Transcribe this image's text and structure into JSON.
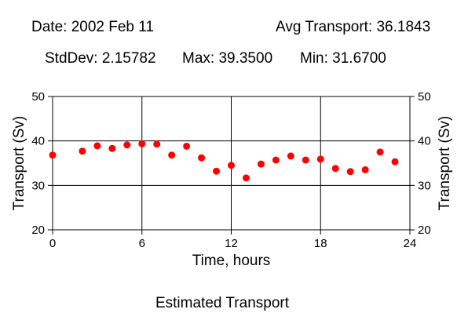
{
  "header": {
    "date": "Date: 2002 Feb 11",
    "avg": "Avg Transport: 36.1843",
    "stddev": "StdDev: 2.15782",
    "max": "Max: 39.3500",
    "min": "Min: 31.6700"
  },
  "chart_data": {
    "type": "scatter",
    "title": "Estimated Transport",
    "xlabel": "Time, hours",
    "ylabel": "Transport (Sv)",
    "xlim": [
      0,
      24
    ],
    "ylim": [
      20,
      50
    ],
    "xticks": [
      0,
      6,
      12,
      18,
      24
    ],
    "yticks": [
      20,
      30,
      40,
      50
    ],
    "grid": true,
    "marker_color": "#ff0000",
    "x": [
      0,
      2,
      3,
      4,
      5,
      6,
      7,
      8,
      9,
      10,
      11,
      12,
      13,
      14,
      15,
      16,
      17,
      18,
      19,
      20,
      21,
      22,
      23
    ],
    "y": [
      36.8,
      37.7,
      38.9,
      38.3,
      39.1,
      39.35,
      39.3,
      36.8,
      38.8,
      36.2,
      33.2,
      34.5,
      31.67,
      34.8,
      35.7,
      36.6,
      35.7,
      35.9,
      33.8,
      33.1,
      33.5,
      37.5,
      35.3
    ]
  }
}
